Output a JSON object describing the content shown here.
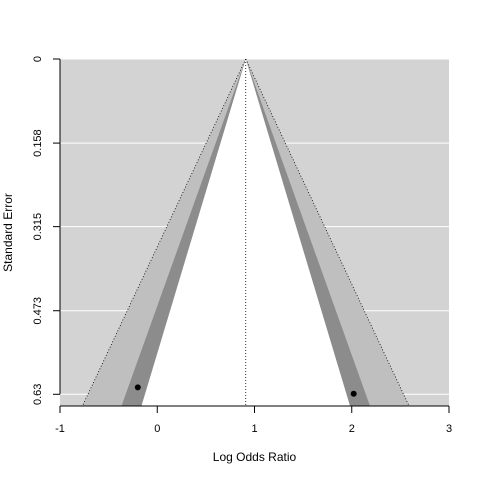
{
  "chart_data": {
    "type": "scatter",
    "subtype": "contour-enhanced funnel plot",
    "xlabel": "Log Odds Ratio",
    "ylabel": "Standard Error",
    "xlim": [
      -1,
      3
    ],
    "ylim": [
      0,
      0.652
    ],
    "y_reversed": true,
    "x_ticks": [
      -1,
      0,
      1,
      2,
      3
    ],
    "x_tick_labels": [
      "-1",
      "0",
      "1",
      "2",
      "3"
    ],
    "y_ticks": [
      0,
      0.158,
      0.315,
      0.473,
      0.63
    ],
    "y_tick_labels": [
      "0",
      "0.158",
      "0.315",
      "0.473",
      "0.63"
    ],
    "grid": true,
    "reference_line_x": 0.91,
    "contour_z_values": [
      1.645,
      1.96,
      2.576
    ],
    "points": [
      {
        "x": -0.2,
        "y": 0.617
      },
      {
        "x": 2.02,
        "y": 0.629
      }
    ],
    "colors": {
      "panel_background": "#d3d3d3",
      "contour_outer": "#bfbfbf",
      "contour_middle": "#8c8c8c",
      "inner_region": "#ffffff",
      "gridline": "#ffffff",
      "point": "#000000"
    }
  }
}
